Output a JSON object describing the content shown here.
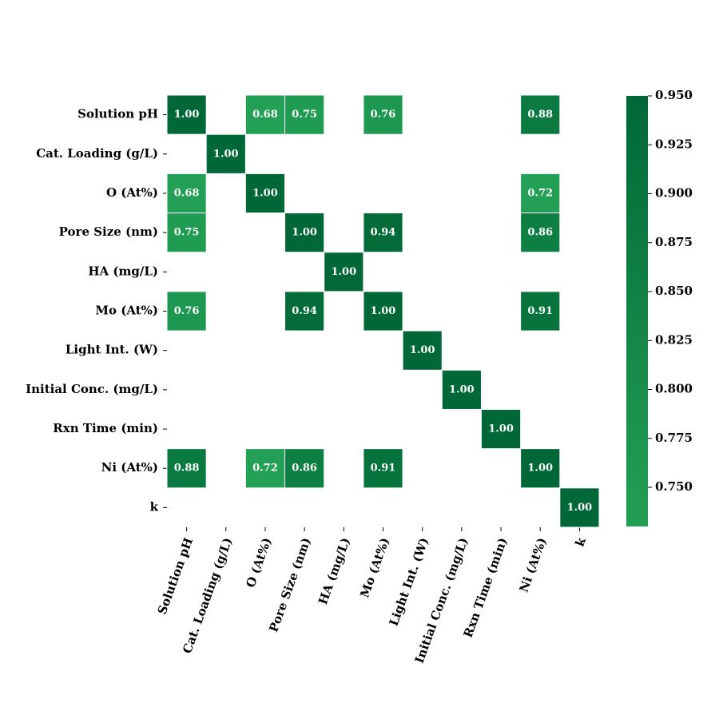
{
  "chart_data": {
    "type": "heatmap",
    "categories": [
      "Solution pH",
      "Cat. Loading (g/L)",
      "O (At%)",
      "Pore Size (nm)",
      "HA (mg/L)",
      "Mo (At%)",
      "Light Int. (W)",
      "Initial Conc. (mg/L)",
      "Rxn Time (min)",
      "Ni (At%)",
      "k"
    ],
    "values": [
      [
        1.0,
        null,
        0.68,
        0.75,
        null,
        0.76,
        null,
        null,
        null,
        0.88,
        null
      ],
      [
        null,
        1.0,
        null,
        null,
        null,
        null,
        null,
        null,
        null,
        null,
        null
      ],
      [
        0.68,
        null,
        1.0,
        null,
        null,
        null,
        null,
        null,
        null,
        0.72,
        null
      ],
      [
        0.75,
        null,
        null,
        1.0,
        null,
        0.94,
        null,
        null,
        null,
        0.86,
        null
      ],
      [
        null,
        null,
        null,
        null,
        1.0,
        null,
        null,
        null,
        null,
        null,
        null
      ],
      [
        0.76,
        null,
        null,
        0.94,
        null,
        1.0,
        null,
        null,
        null,
        0.91,
        null
      ],
      [
        null,
        null,
        null,
        null,
        null,
        null,
        1.0,
        null,
        null,
        null,
        null
      ],
      [
        null,
        null,
        null,
        null,
        null,
        null,
        null,
        1.0,
        null,
        null,
        null
      ],
      [
        null,
        null,
        null,
        null,
        null,
        null,
        null,
        null,
        1.0,
        null,
        null
      ],
      [
        0.88,
        null,
        0.72,
        0.86,
        null,
        0.91,
        null,
        null,
        null,
        1.0,
        null
      ],
      [
        null,
        null,
        null,
        null,
        null,
        null,
        null,
        null,
        null,
        null,
        1.0
      ]
    ],
    "value_labels": [
      [
        "1.00",
        null,
        "0.68",
        "0.75",
        null,
        "0.76",
        null,
        null,
        null,
        "0.88",
        null
      ],
      [
        null,
        "1.00",
        null,
        null,
        null,
        null,
        null,
        null,
        null,
        null,
        null
      ],
      [
        "0.68",
        null,
        "1.00",
        null,
        null,
        null,
        null,
        null,
        null,
        "0.72",
        null
      ],
      [
        "0.75",
        null,
        null,
        "1.00",
        null,
        "0.94",
        null,
        null,
        null,
        "0.86",
        null
      ],
      [
        null,
        null,
        null,
        null,
        "1.00",
        null,
        null,
        null,
        null,
        null,
        null
      ],
      [
        "0.76",
        null,
        null,
        "0.94",
        null,
        "1.00",
        null,
        null,
        null,
        "0.91",
        null
      ],
      [
        null,
        null,
        null,
        null,
        null,
        null,
        "1.00",
        null,
        null,
        null,
        null
      ],
      [
        null,
        null,
        null,
        null,
        null,
        null,
        null,
        "1.00",
        null,
        null,
        null
      ],
      [
        null,
        null,
        null,
        null,
        null,
        null,
        null,
        null,
        "1.00",
        null,
        null
      ],
      [
        "0.88",
        null,
        "0.72",
        "0.86",
        null,
        "0.91",
        null,
        null,
        null,
        "1.00",
        null
      ],
      [
        null,
        null,
        null,
        null,
        null,
        null,
        null,
        null,
        null,
        null,
        "1.00"
      ]
    ],
    "colormap": [
      "#23a055",
      "#006837"
    ],
    "clim": [
      0.73,
      0.95
    ],
    "cticks": [
      {
        "value": 0.75,
        "label": "0.750"
      },
      {
        "value": 0.775,
        "label": "0.775"
      },
      {
        "value": 0.8,
        "label": "0.800"
      },
      {
        "value": 0.825,
        "label": "0.825"
      },
      {
        "value": 0.85,
        "label": "0.850"
      },
      {
        "value": 0.875,
        "label": "0.875"
      },
      {
        "value": 0.9,
        "label": "0.900"
      },
      {
        "value": 0.925,
        "label": "0.925"
      },
      {
        "value": 0.95,
        "label": "0.950"
      }
    ]
  }
}
